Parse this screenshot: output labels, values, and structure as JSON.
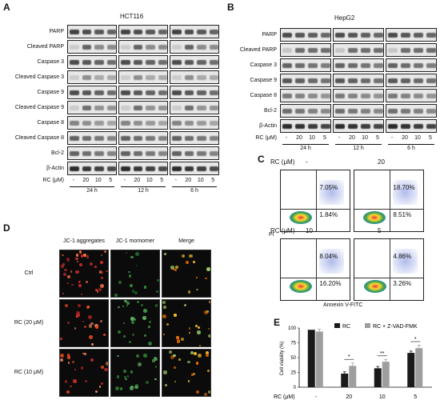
{
  "panel_labels": {
    "A": "A",
    "B": "B",
    "C": "C",
    "D": "D",
    "E": "E"
  },
  "panel_a": {
    "cell_line": "HCT116",
    "rows": [
      "PARP",
      "Cleaved PARP",
      "Caspase 3",
      "Cleaved Caspase 3",
      "Caspase 9",
      "Cleaved Caspase 9",
      "Caspase 8",
      "Cleaved Caspase 8",
      "Bcl-2",
      "β-Actin"
    ],
    "rc_label": "RC (μM)",
    "lanes": [
      "-",
      "20",
      "10",
      "5",
      "-",
      "20",
      "10",
      "5",
      "-",
      "20",
      "10",
      "5"
    ],
    "times": [
      "24 h",
      "12 h",
      "6 h"
    ]
  },
  "panel_b": {
    "cell_line": "HepG2",
    "rows": [
      "PARP",
      "Cleaved PARP",
      "Caspase 3",
      "Caspase 9",
      "Caspase 8",
      "Bcl-2",
      "β-Actin"
    ],
    "rc_label": "RC (μM)",
    "lanes": [
      "-",
      "20",
      "10",
      "5",
      "-",
      "20",
      "10",
      "5",
      "-",
      "20",
      "10",
      "5"
    ],
    "times": [
      "24 h",
      "12 h",
      "6 h"
    ]
  },
  "panel_c": {
    "rc_label": "RC (μM)",
    "plots": [
      {
        "rc": "-",
        "ur": "7.05%",
        "lr": "1.84%"
      },
      {
        "rc": "20",
        "ur": "18.70%",
        "lr": "8.51%"
      },
      {
        "rc": "10",
        "ur": "8.04%",
        "lr": "16.20%"
      },
      {
        "rc": "5",
        "ur": "4.86%",
        "lr": "3.26%"
      }
    ],
    "x_axis": "Annexin V-FITC",
    "y_axis": "PI"
  },
  "panel_d": {
    "columns": [
      "JC-1 aggregates",
      "JC-1 momomer",
      "Merge"
    ],
    "rows": [
      "Ctrl",
      "RC (20 μM)",
      "RC (10 μM)"
    ]
  },
  "chart_data": {
    "type": "bar",
    "categories": [
      "-",
      "20",
      "10",
      "5"
    ],
    "xlabel": "RC (μM)",
    "ylabel": "Cell viability (%)",
    "ylim": [
      0,
      100
    ],
    "yticks": [
      "0",
      "25",
      "50",
      "75",
      "100"
    ],
    "series": [
      {
        "name": "RC",
        "values": [
          97,
          23,
          32,
          58
        ],
        "errors": [
          0,
          3,
          3,
          3
        ],
        "color": "#1a1a1a"
      },
      {
        "name": "RC + Z-VAD-FMK",
        "values": [
          94,
          36,
          43,
          66
        ],
        "errors": [
          4,
          5,
          4,
          5
        ],
        "color": "#9e9e9e"
      }
    ],
    "significance": [
      "*",
      "**",
      "*"
    ],
    "legend_position": "top-right"
  }
}
